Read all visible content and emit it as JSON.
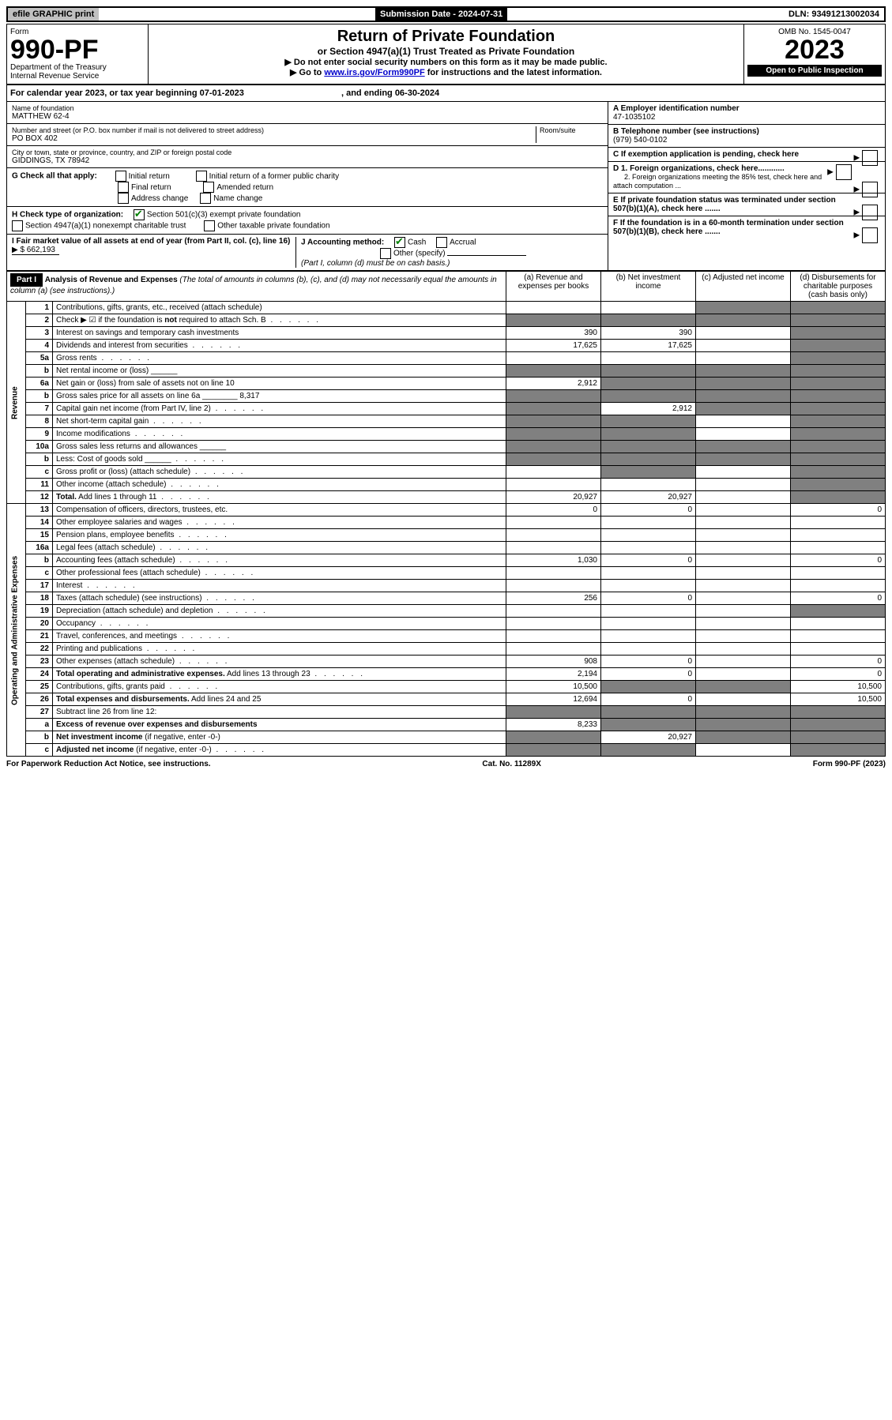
{
  "top": {
    "efile": "efile GRAPHIC print",
    "sub_date_label": "Submission Date - 2024-07-31",
    "dln": "DLN: 93491213002034"
  },
  "header": {
    "form_word": "Form",
    "form_no": "990-PF",
    "dept": "Department of the Treasury",
    "irs": "Internal Revenue Service",
    "title": "Return of Private Foundation",
    "sub1": "or Section 4947(a)(1) Trust Treated as Private Foundation",
    "sub2a": "▶ Do not enter social security numbers on this form as it may be made public.",
    "sub2b": "▶ Go to ",
    "link": "www.irs.gov/Form990PF",
    "sub2c": " for instructions and the latest information.",
    "omb": "OMB No. 1545-0047",
    "year": "2023",
    "open": "Open to Public Inspection"
  },
  "cal": {
    "line": "For calendar year 2023, or tax year beginning 07-01-2023",
    "ending": ", and ending 06-30-2024"
  },
  "entity": {
    "name_label": "Name of foundation",
    "name": "MATTHEW 62-4",
    "addr_label": "Number and street (or P.O. box number if mail is not delivered to street address)",
    "room_label": "Room/suite",
    "addr": "PO BOX 402",
    "city_label": "City or town, state or province, country, and ZIP or foreign postal code",
    "city": "GIDDINGS, TX  78942",
    "a_label": "A Employer identification number",
    "ein": "47-1035102",
    "b_label": "B Telephone number (see instructions)",
    "phone": "(979) 540-0102",
    "c_label": "C If exemption application is pending, check here",
    "d1_label": "D 1. Foreign organizations, check here............",
    "d2_label": "2. Foreign organizations meeting the 85% test, check here and attach computation ...",
    "e_label": "E  If private foundation status was terminated under section 507(b)(1)(A), check here .......",
    "f_label": "F  If the foundation is in a 60-month termination under section 507(b)(1)(B), check here .......",
    "g_label": "G Check all that apply:",
    "g_opts": [
      "Initial return",
      "Final return",
      "Address change",
      "Initial return of a former public charity",
      "Amended return",
      "Name change"
    ],
    "h_label": "H Check type of organization:",
    "h_opt1": "Section 501(c)(3) exempt private foundation",
    "h_opt2": "Section 4947(a)(1) nonexempt charitable trust",
    "h_opt3": "Other taxable private foundation",
    "i_label": "I Fair market value of all assets at end of year (from Part II, col. (c), line 16)",
    "i_val": "$  662,193",
    "j_label": "J Accounting method:",
    "j_cash": "Cash",
    "j_accrual": "Accrual",
    "j_other": "Other (specify)",
    "j_note": "(Part I, column (d) must be on cash basis.)"
  },
  "part1": {
    "label": "Part I",
    "title": "Analysis of Revenue and Expenses",
    "title_note": " (The total of amounts in columns (b), (c), and (d) may not necessarily equal the amounts in column (a) (see instructions).)",
    "col_a": "(a)   Revenue and expenses per books",
    "col_b": "(b)   Net investment income",
    "col_c": "(c)   Adjusted net income",
    "col_d": "(d)   Disbursements for charitable purposes (cash basis only)",
    "side_rev": "Revenue",
    "side_exp": "Operating and Administrative Expenses"
  },
  "rows": [
    {
      "n": "1",
      "t": "Contributions, gifts, grants, etc., received (attach schedule)",
      "a": "",
      "b": "",
      "c": "s",
      "d": "s"
    },
    {
      "n": "2",
      "t": "Check ▶ ☑ if the foundation is <b>not</b> required to attach Sch. B",
      "a": "s",
      "b": "s",
      "c": "s",
      "d": "s",
      "dots": true
    },
    {
      "n": "3",
      "t": "Interest on savings and temporary cash investments",
      "a": "390",
      "b": "390",
      "c": "",
      "d": "s"
    },
    {
      "n": "4",
      "t": "Dividends and interest from securities",
      "a": "17,625",
      "b": "17,625",
      "c": "",
      "d": "s",
      "dots": true
    },
    {
      "n": "5a",
      "t": "Gross rents",
      "a": "",
      "b": "",
      "c": "",
      "d": "s",
      "dots": true
    },
    {
      "n": "b",
      "t": "Net rental income or (loss) ______",
      "a": "s",
      "b": "s",
      "c": "s",
      "d": "s"
    },
    {
      "n": "6a",
      "t": "Net gain or (loss) from sale of assets not on line 10",
      "a": "2,912",
      "b": "s",
      "c": "s",
      "d": "s"
    },
    {
      "n": "b",
      "t": "Gross sales price for all assets on line 6a ________ 8,317",
      "a": "s",
      "b": "s",
      "c": "s",
      "d": "s"
    },
    {
      "n": "7",
      "t": "Capital gain net income (from Part IV, line 2)",
      "a": "s",
      "b": "2,912",
      "c": "s",
      "d": "s",
      "dots": true
    },
    {
      "n": "8",
      "t": "Net short-term capital gain",
      "a": "s",
      "b": "s",
      "c": "",
      "d": "s",
      "dots": true
    },
    {
      "n": "9",
      "t": "Income modifications",
      "a": "s",
      "b": "s",
      "c": "",
      "d": "s",
      "dots": true
    },
    {
      "n": "10a",
      "t": "Gross sales less returns and allowances ______",
      "a": "s",
      "b": "s",
      "c": "s",
      "d": "s"
    },
    {
      "n": "b",
      "t": "Less: Cost of goods sold ______",
      "a": "s",
      "b": "s",
      "c": "s",
      "d": "s",
      "dots": true
    },
    {
      "n": "c",
      "t": "Gross profit or (loss) (attach schedule)",
      "a": "",
      "b": "s",
      "c": "",
      "d": "s",
      "dots": true
    },
    {
      "n": "11",
      "t": "Other income (attach schedule)",
      "a": "",
      "b": "",
      "c": "",
      "d": "s",
      "dots": true
    },
    {
      "n": "12",
      "t": "<b>Total.</b> Add lines 1 through 11",
      "a": "20,927",
      "b": "20,927",
      "c": "",
      "d": "s",
      "dots": true
    },
    {
      "n": "13",
      "t": "Compensation of officers, directors, trustees, etc.",
      "a": "0",
      "b": "0",
      "c": "",
      "d": "0"
    },
    {
      "n": "14",
      "t": "Other employee salaries and wages",
      "a": "",
      "b": "",
      "c": "",
      "d": "",
      "dots": true
    },
    {
      "n": "15",
      "t": "Pension plans, employee benefits",
      "a": "",
      "b": "",
      "c": "",
      "d": "",
      "dots": true
    },
    {
      "n": "16a",
      "t": "Legal fees (attach schedule)",
      "a": "",
      "b": "",
      "c": "",
      "d": "",
      "dots": true
    },
    {
      "n": "b",
      "t": "Accounting fees (attach schedule)",
      "a": "1,030",
      "b": "0",
      "c": "",
      "d": "0",
      "dots": true
    },
    {
      "n": "c",
      "t": "Other professional fees (attach schedule)",
      "a": "",
      "b": "",
      "c": "",
      "d": "",
      "dots": true
    },
    {
      "n": "17",
      "t": "Interest",
      "a": "",
      "b": "",
      "c": "",
      "d": "",
      "dots": true
    },
    {
      "n": "18",
      "t": "Taxes (attach schedule) (see instructions)",
      "a": "256",
      "b": "0",
      "c": "",
      "d": "0",
      "dots": true
    },
    {
      "n": "19",
      "t": "Depreciation (attach schedule) and depletion",
      "a": "",
      "b": "",
      "c": "",
      "d": "s",
      "dots": true
    },
    {
      "n": "20",
      "t": "Occupancy",
      "a": "",
      "b": "",
      "c": "",
      "d": "",
      "dots": true
    },
    {
      "n": "21",
      "t": "Travel, conferences, and meetings",
      "a": "",
      "b": "",
      "c": "",
      "d": "",
      "dots": true
    },
    {
      "n": "22",
      "t": "Printing and publications",
      "a": "",
      "b": "",
      "c": "",
      "d": "",
      "dots": true
    },
    {
      "n": "23",
      "t": "Other expenses (attach schedule)",
      "a": "908",
      "b": "0",
      "c": "",
      "d": "0",
      "dots": true
    },
    {
      "n": "24",
      "t": "<b>Total operating and administrative expenses.</b> Add lines 13 through 23",
      "a": "2,194",
      "b": "0",
      "c": "",
      "d": "0",
      "dots": true
    },
    {
      "n": "25",
      "t": "Contributions, gifts, grants paid",
      "a": "10,500",
      "b": "s",
      "c": "s",
      "d": "10,500",
      "dots": true
    },
    {
      "n": "26",
      "t": "<b>Total expenses and disbursements.</b> Add lines 24 and 25",
      "a": "12,694",
      "b": "0",
      "c": "",
      "d": "10,500"
    },
    {
      "n": "27",
      "t": "Subtract line 26 from line 12:",
      "a": "s",
      "b": "s",
      "c": "s",
      "d": "s"
    },
    {
      "n": "a",
      "t": "<b>Excess of revenue over expenses and disbursements</b>",
      "a": "8,233",
      "b": "s",
      "c": "s",
      "d": "s"
    },
    {
      "n": "b",
      "t": "<b>Net investment income</b> (if negative, enter -0-)",
      "a": "s",
      "b": "20,927",
      "c": "s",
      "d": "s"
    },
    {
      "n": "c",
      "t": "<b>Adjusted net income</b> (if negative, enter -0-)",
      "a": "s",
      "b": "s",
      "c": "",
      "d": "s",
      "dots": true
    }
  ],
  "footer": {
    "pra": "For Paperwork Reduction Act Notice, see instructions.",
    "cat": "Cat. No. 11289X",
    "form": "Form 990-PF (2023)"
  }
}
